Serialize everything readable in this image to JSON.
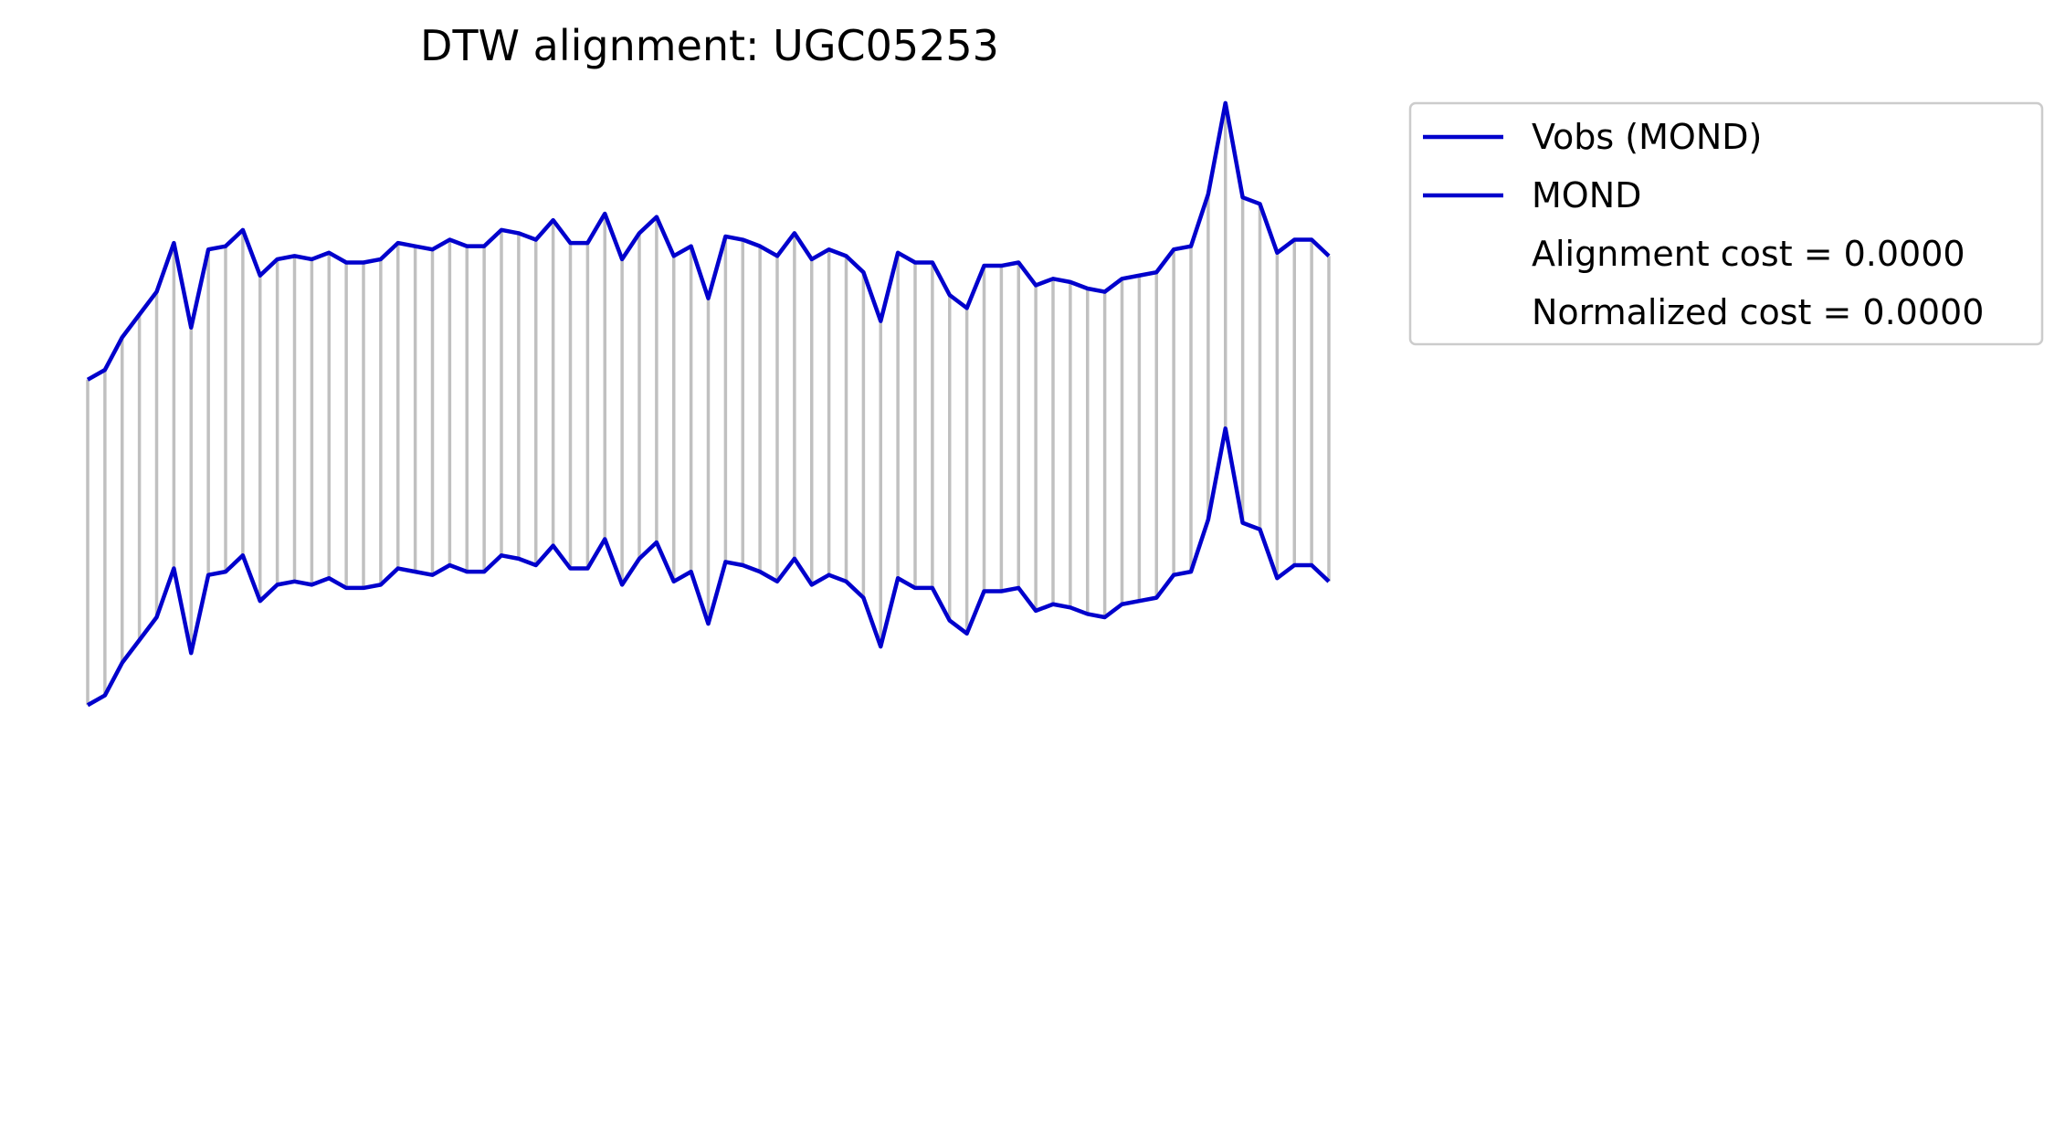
{
  "chart_data": {
    "type": "line",
    "title": "DTW alignment: UGC05253",
    "xlabel": "",
    "ylabel": "",
    "axes_visible": false,
    "grid": false,
    "legend_placement": "outside-top-right",
    "x": [
      0,
      1,
      2,
      3,
      4,
      5,
      6,
      7,
      8,
      9,
      10,
      11,
      12,
      13,
      14,
      15,
      16,
      17,
      18,
      19,
      20,
      21,
      22,
      23,
      24,
      25,
      26,
      27,
      28,
      29,
      30,
      31,
      32,
      33,
      34,
      35,
      36,
      37,
      38,
      39,
      40,
      41,
      42,
      43,
      44,
      45,
      46,
      47,
      48,
      49,
      50,
      51,
      52,
      53,
      54,
      55,
      56,
      57,
      58,
      59,
      60,
      61,
      62,
      63,
      64,
      65,
      66,
      67,
      68,
      69,
      70,
      71,
      72
    ],
    "ylim": [
      -1.2,
      1.9
    ],
    "vertical_offset": 1.0,
    "series": [
      {
        "name": "Vobs (MOND)",
        "color": "#0000cc",
        "values": [
          0.0,
          0.03,
          0.13,
          0.2,
          0.27,
          0.42,
          0.16,
          0.4,
          0.41,
          0.46,
          0.32,
          0.37,
          0.38,
          0.37,
          0.39,
          0.36,
          0.36,
          0.37,
          0.42,
          0.41,
          0.4,
          0.43,
          0.41,
          0.41,
          0.46,
          0.45,
          0.43,
          0.49,
          0.42,
          0.42,
          0.51,
          0.37,
          0.45,
          0.5,
          0.38,
          0.41,
          0.25,
          0.44,
          0.43,
          0.41,
          0.38,
          0.45,
          0.37,
          0.4,
          0.38,
          0.33,
          0.18,
          0.39,
          0.36,
          0.36,
          0.26,
          0.22,
          0.35,
          0.35,
          0.36,
          0.29,
          0.31,
          0.3,
          0.28,
          0.27,
          0.31,
          0.32,
          0.33,
          0.4,
          0.41,
          0.57,
          0.85,
          0.56,
          0.54,
          0.39,
          0.43,
          0.43,
          0.38
        ]
      },
      {
        "name": "MOND",
        "color": "#0000cc",
        "values": [
          0.0,
          0.03,
          0.13,
          0.2,
          0.27,
          0.42,
          0.16,
          0.4,
          0.41,
          0.46,
          0.32,
          0.37,
          0.38,
          0.37,
          0.39,
          0.36,
          0.36,
          0.37,
          0.42,
          0.41,
          0.4,
          0.43,
          0.41,
          0.41,
          0.46,
          0.45,
          0.43,
          0.49,
          0.42,
          0.42,
          0.51,
          0.37,
          0.45,
          0.5,
          0.38,
          0.41,
          0.25,
          0.44,
          0.43,
          0.41,
          0.38,
          0.45,
          0.37,
          0.4,
          0.38,
          0.33,
          0.18,
          0.39,
          0.36,
          0.36,
          0.26,
          0.22,
          0.35,
          0.35,
          0.36,
          0.29,
          0.31,
          0.3,
          0.28,
          0.27,
          0.31,
          0.32,
          0.33,
          0.4,
          0.41,
          0.57,
          0.85,
          0.56,
          0.54,
          0.39,
          0.43,
          0.43,
          0.38
        ]
      }
    ],
    "alignment_color": "#c0c0c0",
    "legend": {
      "entries": [
        {
          "label": "Vobs (MOND)",
          "color": "#0000cc",
          "has_line": true
        },
        {
          "label": "MOND",
          "color": "#0000cc",
          "has_line": true
        },
        {
          "label": "Alignment cost = 0.0000",
          "has_line": false
        },
        {
          "label": "Normalized cost = 0.0000",
          "has_line": false
        }
      ]
    }
  }
}
